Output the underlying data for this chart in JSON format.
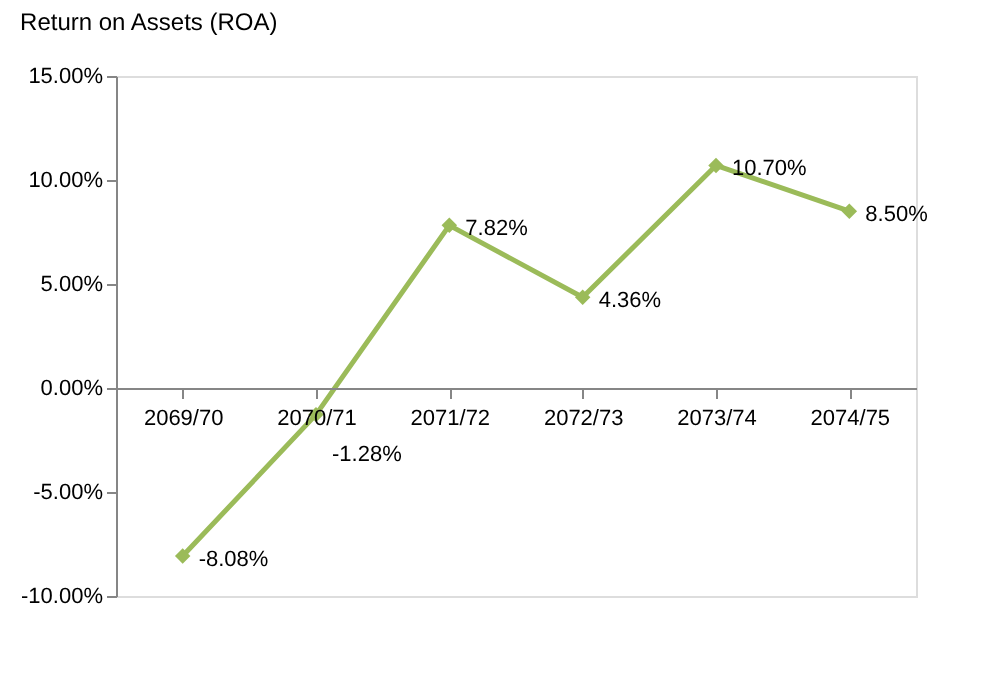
{
  "chart_data": {
    "type": "line",
    "title": "Return on Assets (ROA)",
    "categories": [
      "2069/70",
      "2070/71",
      "2071/72",
      "2072/73",
      "2073/74",
      "2074/75"
    ],
    "series": [
      {
        "color": "#9bbb59",
        "values": [
          -8.08,
          -1.28,
          7.82,
          4.36,
          10.7,
          8.5
        ],
        "value_labels": [
          "-8.08%",
          "-1.28%",
          "7.82%",
          "4.36%",
          "10.70%",
          "8.50%"
        ]
      }
    ],
    "ylim": [
      -10,
      15
    ],
    "yticks": [
      {
        "value": -10,
        "label": "-10.00%"
      },
      {
        "value": -5,
        "label": "-5.00%"
      },
      {
        "value": 0,
        "label": "0.00%"
      },
      {
        "value": 5,
        "label": "5.00%"
      },
      {
        "value": 10,
        "label": "10.00%"
      },
      {
        "value": 15,
        "label": "15.00%"
      }
    ],
    "grid": false,
    "marker": "diamond",
    "line_style": "solid"
  }
}
